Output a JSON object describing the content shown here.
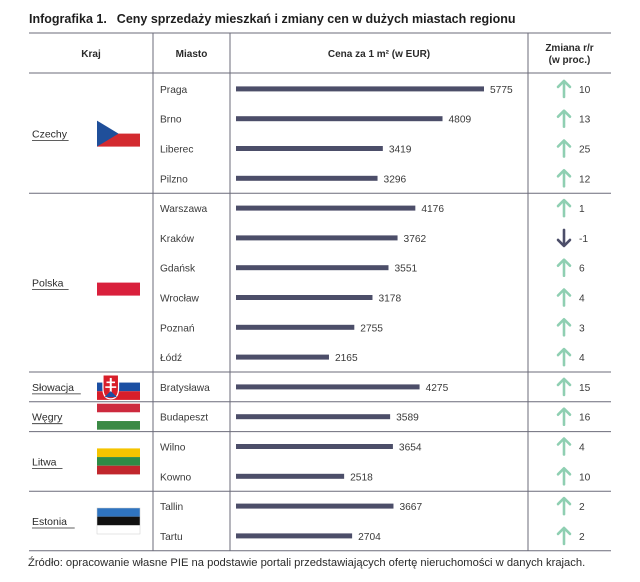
{
  "title": {
    "number": "Infografika 1.",
    "text": "Ceny sprzedaży mieszkań i zmiany cen w dużych miastach regionu"
  },
  "headers": {
    "country": "Kraj",
    "city": "Miasto",
    "price": "Cena za 1 m² (w EUR)",
    "change_line1": "Zmiana r/r",
    "change_line2": "(w proc.)"
  },
  "countries": [
    {
      "name": "Czechy",
      "flag": "czech",
      "cities": [
        "Praga",
        "Brno",
        "Liberec",
        "Pilzno"
      ]
    },
    {
      "name": "Polska",
      "flag": "poland",
      "cities": [
        "Warszawa",
        "Kraków",
        "Gdańsk",
        "Wrocław",
        "Poznań",
        "Łódź"
      ]
    },
    {
      "name": "Słowacja",
      "flag": "slovakia",
      "cities": [
        "Bratysława"
      ]
    },
    {
      "name": "Węgry",
      "flag": "hungary",
      "cities": [
        "Budapeszt"
      ]
    },
    {
      "name": "Litwa",
      "flag": "lithuania",
      "cities": [
        "Wilno",
        "Kowno"
      ]
    },
    {
      "name": "Estonia",
      "flag": "estonia",
      "cities": [
        "Tallin",
        "Tartu"
      ]
    }
  ],
  "chart_data": {
    "type": "bar",
    "categories": [
      "Praga",
      "Brno",
      "Liberec",
      "Pilzno",
      "Warszawa",
      "Kraków",
      "Gdańsk",
      "Wrocław",
      "Poznań",
      "Łódź",
      "Bratysława",
      "Budapeszt",
      "Wilno",
      "Kowno",
      "Tallin",
      "Tartu"
    ],
    "series": [
      {
        "values": [
          5775,
          4809,
          3419,
          3296,
          4176,
          3762,
          3551,
          3178,
          2755,
          2165,
          4275,
          3589,
          3654,
          2518,
          3667,
          2704
        ]
      }
    ],
    "change_yoy": [
      10,
      13,
      25,
      12,
      1,
      -1,
      6,
      4,
      3,
      4,
      15,
      16,
      4,
      10,
      2,
      2
    ],
    "xlim": [
      0,
      5775
    ],
    "grid": false,
    "orientation": "horizontal"
  },
  "colors": {
    "bar": "#4c4e69",
    "arrow_up": "#8fcfb2",
    "arrow_down": "#4c4e69",
    "rule": "#6b6b7a",
    "czech_blue": "#1f4f9a",
    "czech_red": "#d32a2f",
    "poland_red": "#d9203c",
    "slovakia_white": "#ffffff",
    "slovakia_blue": "#1b4fa3",
    "slovakia_red": "#d81e2a",
    "hungary_red": "#cd2a3e",
    "hungary_green": "#3b8a45",
    "lithuania_yellow": "#f5c400",
    "lithuania_green": "#2f8b46",
    "lithuania_red": "#c1272d",
    "estonia_blue": "#2f74c0",
    "estonia_black": "#111111"
  },
  "source": "Źródło: opracowanie własne PIE na podstawie portali przedstawiających ofertę nieruchomości w danych krajach."
}
